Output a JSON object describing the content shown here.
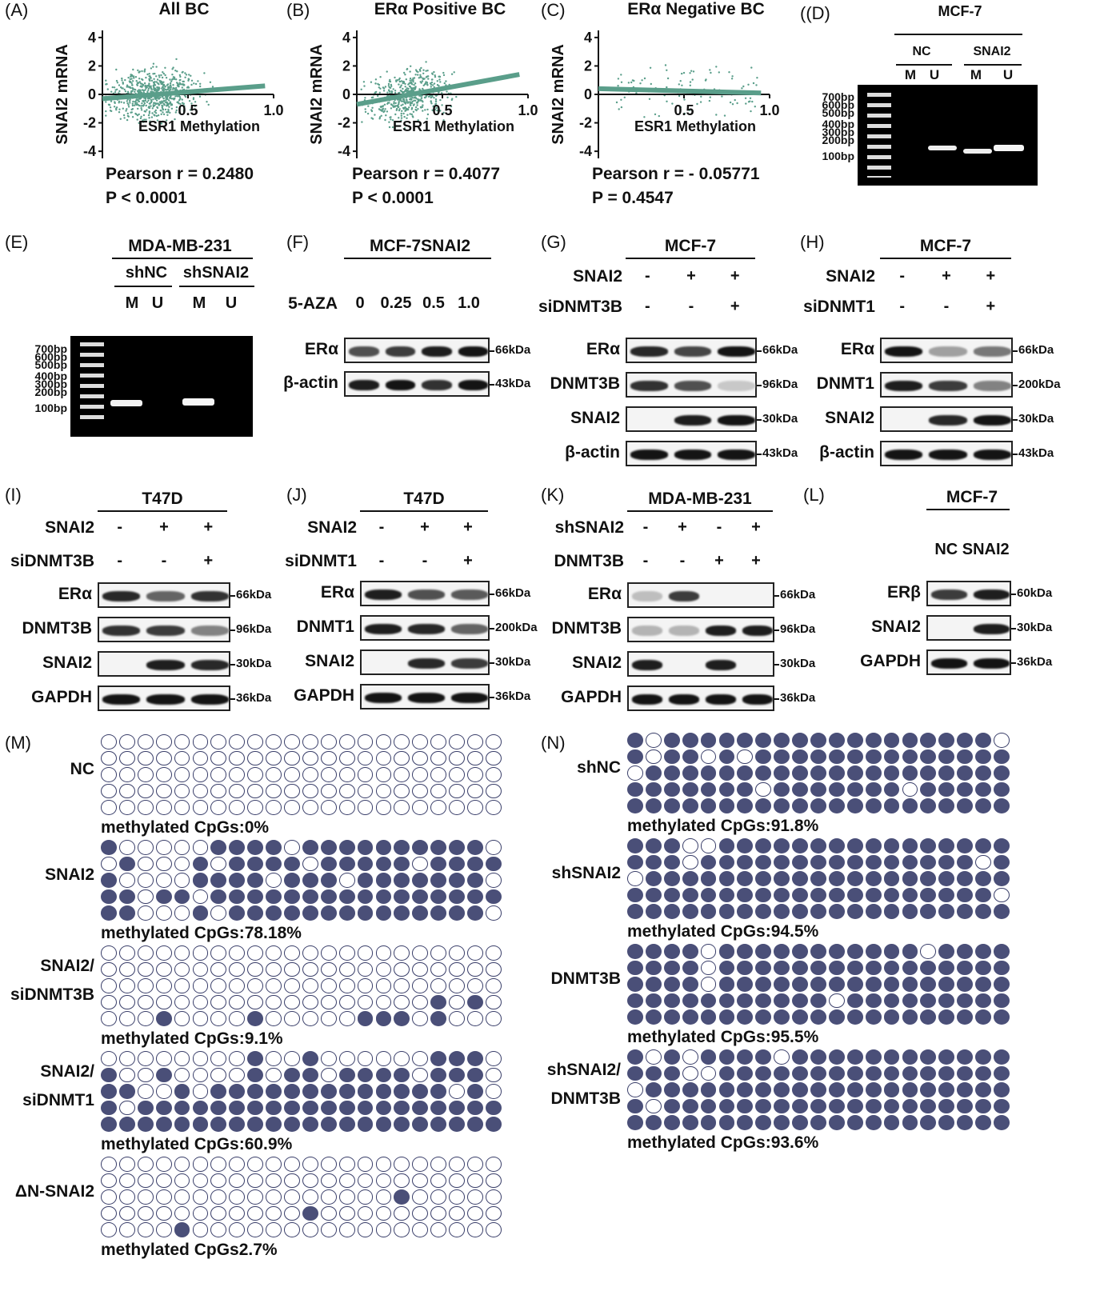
{
  "panels": {
    "A": {
      "label": "(A)",
      "title": "All BC",
      "ylabel": "SNAI2 mRNA",
      "xlabel": "ESR1 Methylation",
      "stat": "Pearson r = 0.2480",
      "p": "P < 0.0001"
    },
    "B": {
      "label": "(B)",
      "title": "ERα Positive BC",
      "ylabel": "SNAI2 mRNA",
      "xlabel": "ESR1 Methylation",
      "stat": "Pearson r = 0.4077",
      "p": "P < 0.0001"
    },
    "C": {
      "label": "(C)",
      "title": "ERα Negative BC",
      "ylabel": "SNAI2 mRNA",
      "xlabel": "ESR1 Methylation",
      "stat": "Pearson r =  - 0.05771",
      "p": "P = 0.4547"
    },
    "D": {
      "label": "((D)",
      "title": "MCF-7",
      "groups": [
        "NC",
        "SNAI2"
      ],
      "lanes": [
        "M",
        "U",
        "M",
        "U"
      ],
      "ladder": [
        "700bp",
        "600bp",
        "500bp",
        "400bp",
        "300bp",
        "200bp",
        "100bp"
      ]
    },
    "E": {
      "label": "(E)",
      "title": "MDA-MB-231",
      "groups": [
        "shNC",
        "shSNAI2"
      ],
      "lanes": [
        "M",
        "U",
        "M",
        "U"
      ],
      "ladder": [
        "700bp",
        "600bp",
        "500bp",
        "400bp",
        "300bp",
        "200bp",
        "100bp"
      ]
    },
    "F": {
      "label": "(F)",
      "title": "MCF-7SNAI2",
      "treat_label": "5-AZA",
      "doses": [
        "0",
        "0.25",
        "0.5",
        "1.0"
      ],
      "rows": [
        "ERα",
        "β-actin"
      ],
      "kda": [
        "66kDa",
        "43kDa"
      ]
    },
    "G": {
      "label": "(G)",
      "title": "MCF-7",
      "cond": [
        {
          "name": "SNAI2",
          "v": [
            "-",
            "+",
            "+"
          ]
        },
        {
          "name": "siDNMT3B",
          "v": [
            "-",
            "-",
            "+"
          ]
        }
      ],
      "rows": [
        "ERα",
        "DNMT3B",
        "SNAI2",
        "β-actin"
      ],
      "kda": [
        "66kDa",
        "96kDa",
        "30kDa",
        "43kDa"
      ]
    },
    "H": {
      "label": "(H)",
      "title": "MCF-7",
      "cond": [
        {
          "name": "SNAI2",
          "v": [
            "-",
            "+",
            "+"
          ]
        },
        {
          "name": "siDNMT1",
          "v": [
            "-",
            "-",
            "+"
          ]
        }
      ],
      "rows": [
        "ERα",
        "DNMT1",
        "SNAI2",
        "β-actin"
      ],
      "kda": [
        "66kDa",
        "200kDa",
        "30kDa",
        "43kDa"
      ]
    },
    "I": {
      "label": "(I)",
      "title": "T47D",
      "cond": [
        {
          "name": "SNAI2",
          "v": [
            "-",
            "+",
            "+"
          ]
        },
        {
          "name": "siDNMT3B",
          "v": [
            "-",
            "-",
            "+"
          ]
        }
      ],
      "rows": [
        "ERα",
        "DNMT3B",
        "SNAI2",
        "GAPDH"
      ],
      "kda": [
        "66kDa",
        "96kDa",
        "30kDa",
        "36kDa"
      ]
    },
    "J": {
      "label": "(J)",
      "title": "T47D",
      "cond": [
        {
          "name": "SNAI2",
          "v": [
            "-",
            "+",
            "+"
          ]
        },
        {
          "name": "siDNMT1",
          "v": [
            "-",
            "-",
            "+"
          ]
        }
      ],
      "rows": [
        "ERα",
        "DNMT1",
        "SNAI2",
        "GAPDH"
      ],
      "kda": [
        "66kDa",
        "200kDa",
        "30kDa",
        "36kDa"
      ]
    },
    "K": {
      "label": "(K)",
      "title": "MDA-MB-231",
      "cond": [
        {
          "name": "shSNAI2",
          "v": [
            "-",
            "+",
            "-",
            "+"
          ]
        },
        {
          "name": "DNMT3B",
          "v": [
            "-",
            "-",
            "+",
            "+"
          ]
        }
      ],
      "rows": [
        "ERα",
        "DNMT3B",
        "SNAI2",
        "GAPDH"
      ],
      "kda": [
        "66kDa",
        "96kDa",
        "30kDa",
        "36kDa"
      ]
    },
    "L": {
      "label": "(L)",
      "title": "MCF-7",
      "lanes": "NC SNAI2",
      "rows": [
        "ERβ",
        "SNAI2",
        "GAPDH"
      ],
      "kda": [
        "60kDa",
        "30kDa",
        "36kDa"
      ]
    },
    "M": {
      "label": "(M)",
      "groups": [
        {
          "name": "NC",
          "stat": "methylated CpGs:0%"
        },
        {
          "name": "SNAI2",
          "stat": "methylated CpGs:78.18%"
        },
        {
          "name": "SNAI2/\nsiDNMT3B",
          "stat": "methylated CpGs:9.1%"
        },
        {
          "name": "SNAI2/\nsiDNMT1",
          "stat": "methylated CpGs:60.9%"
        },
        {
          "name": "ΔN-SNAI2",
          "stat": "methylated CpGs2.7%"
        }
      ]
    },
    "N": {
      "label": "(N)",
      "groups": [
        {
          "name": "shNC",
          "stat": "methylated CpGs:91.8%"
        },
        {
          "name": "shSNAI2",
          "stat": "methylated CpGs:94.5%"
        },
        {
          "name": "DNMT3B",
          "stat": "methylated CpGs:95.5%"
        },
        {
          "name": "shSNAI2/\nDNMT3B",
          "stat": "methylated CpGs:93.6%"
        }
      ]
    }
  },
  "chart_data": [
    {
      "type": "scatter",
      "title": "All BC",
      "xlabel": "ESR1 Methylation",
      "ylabel": "SNAI2 mRNA",
      "xlim": [
        0,
        1.0
      ],
      "ylim": [
        -4.5,
        4.5
      ],
      "xticks": [
        "0.5",
        "1.0"
      ],
      "yticks": [
        "4",
        "2",
        "0",
        "-2",
        "-4"
      ],
      "fit": {
        "x": [
          0,
          0.95
        ],
        "y": [
          -0.3,
          0.6
        ]
      },
      "color": "#5a9e8a"
    },
    {
      "type": "scatter",
      "title": "ERα Positive BC",
      "xlabel": "ESR1 Methylation",
      "ylabel": "SNAI2 mRNA",
      "xlim": [
        0,
        1.0
      ],
      "ylim": [
        -4.5,
        4.5
      ],
      "xticks": [
        "0.5",
        "1.0"
      ],
      "yticks": [
        "4",
        "2",
        "0",
        "-2",
        "-4"
      ],
      "fit": {
        "x": [
          0,
          0.95
        ],
        "y": [
          -0.7,
          1.4
        ]
      },
      "color": "#5a9e8a"
    },
    {
      "type": "scatter",
      "title": "ERα Negative BC",
      "xlabel": "ESR1 Methylation",
      "ylabel": "SNAI2 mRNA",
      "xlim": [
        0,
        1.0
      ],
      "ylim": [
        -4.5,
        4.5
      ],
      "xticks": [
        "0.5",
        "1.0"
      ],
      "yticks": [
        "4",
        "2",
        "0",
        "-2",
        "-4"
      ],
      "fit": {
        "x": [
          0,
          0.95
        ],
        "y": [
          0.4,
          0.1
        ]
      },
      "color": "#5a9e8a"
    }
  ]
}
